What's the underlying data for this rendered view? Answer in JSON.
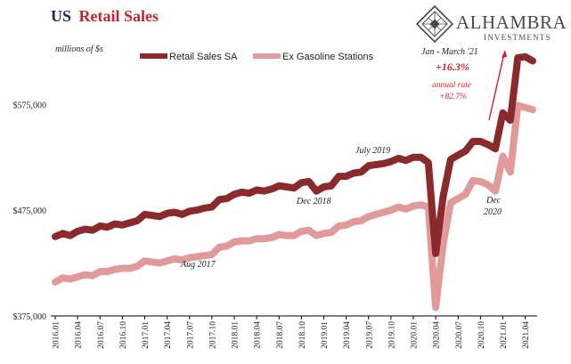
{
  "title": {
    "part1": "US",
    "part2": "Retail Sales"
  },
  "brand": {
    "name": "ALHAMBRA",
    "sub": "INVESTMENTS"
  },
  "colors": {
    "series1": "#8a2a2c",
    "series2": "#e09a9a",
    "accent": "#d21f26",
    "title_blue": "#1f2a63"
  },
  "chart_data": {
    "type": "line",
    "units_label": "millions of $s",
    "legend_position": "top",
    "grid": false,
    "y_ticks": [
      "$375,000",
      "$475,000",
      "$575,000"
    ],
    "ylim": [
      375000,
      640000
    ],
    "x_ticks": [
      "2016.01",
      "2016.04",
      "2016.07",
      "2016.10",
      "2017.01",
      "2017.04",
      "2017.07",
      "2017.10",
      "2018.01",
      "2018.04",
      "2018.07",
      "2018.10",
      "2019.01",
      "2019.04",
      "2019.07",
      "2019.10",
      "2020.01",
      "2020.04",
      "2020.07",
      "2020.10",
      "2021.01",
      "2021.04"
    ],
    "x": [
      "2016.01",
      "2016.02",
      "2016.03",
      "2016.04",
      "2016.05",
      "2016.06",
      "2016.07",
      "2016.08",
      "2016.09",
      "2016.10",
      "2016.11",
      "2016.12",
      "2017.01",
      "2017.02",
      "2017.03",
      "2017.04",
      "2017.05",
      "2017.06",
      "2017.07",
      "2017.08",
      "2017.09",
      "2017.10",
      "2017.11",
      "2017.12",
      "2018.01",
      "2018.02",
      "2018.03",
      "2018.04",
      "2018.05",
      "2018.06",
      "2018.07",
      "2018.08",
      "2018.09",
      "2018.10",
      "2018.11",
      "2018.12",
      "2019.01",
      "2019.02",
      "2019.03",
      "2019.04",
      "2019.05",
      "2019.06",
      "2019.07",
      "2019.08",
      "2019.09",
      "2019.10",
      "2019.11",
      "2019.12",
      "2020.01",
      "2020.02",
      "2020.03",
      "2020.04",
      "2020.05",
      "2020.06",
      "2020.07",
      "2020.08",
      "2020.09",
      "2020.10",
      "2020.11",
      "2020.12",
      "2021.01",
      "2021.02",
      "2021.03",
      "2021.04",
      "2021.05"
    ],
    "series": [
      {
        "name": "Retail Sales SA",
        "values": [
          450000,
          453000,
          451000,
          455000,
          457000,
          456000,
          460000,
          459000,
          462000,
          461000,
          463000,
          465000,
          471000,
          470000,
          469000,
          472000,
          473000,
          471000,
          474000,
          475000,
          477000,
          478000,
          485000,
          486000,
          490000,
          492000,
          491000,
          494000,
          493000,
          495000,
          498000,
          497000,
          496000,
          501000,
          502000,
          493000,
          497000,
          498000,
          507000,
          507000,
          510000,
          511000,
          517000,
          518000,
          519000,
          521000,
          524000,
          522000,
          525000,
          525000,
          520000,
          434000,
          488000,
          523000,
          527000,
          531000,
          540000,
          540000,
          537000,
          533000,
          567000,
          560000,
          619000,
          620000,
          616000
        ]
      },
      {
        "name": "Ex Gasoline Stations",
        "values": [
          407000,
          411000,
          410000,
          412000,
          414000,
          413000,
          417000,
          417000,
          419000,
          420000,
          420000,
          422000,
          427000,
          426000,
          425000,
          427000,
          429000,
          428000,
          430000,
          431000,
          432000,
          433000,
          440000,
          441000,
          445000,
          446000,
          446000,
          448000,
          448000,
          449000,
          452000,
          451000,
          451000,
          455000,
          456000,
          451000,
          453000,
          454000,
          460000,
          461000,
          464000,
          465000,
          469000,
          471000,
          473000,
          475000,
          478000,
          476000,
          479000,
          480000,
          478000,
          383000,
          443000,
          482000,
          486000,
          490000,
          503000,
          502000,
          499000,
          493000,
          526000,
          511000,
          574000,
          572000,
          570000
        ]
      }
    ],
    "annotations": [
      {
        "text": "Aug 2017",
        "x": "2017.08",
        "y": 418000
      },
      {
        "text": "Dec 2018",
        "x": "2018.12",
        "y": 484000
      },
      {
        "text": "July 2019",
        "x": "2019.07",
        "y": 527000
      },
      {
        "text": "Dec",
        "x": "2020.12",
        "y": 486000
      },
      {
        "text": "2020",
        "x": "2020.12",
        "y": 476000
      }
    ],
    "callout": {
      "period": "Jan - March '21",
      "change": "+16.3%",
      "rate_label": "annual rate",
      "rate": "+82.7%"
    }
  }
}
